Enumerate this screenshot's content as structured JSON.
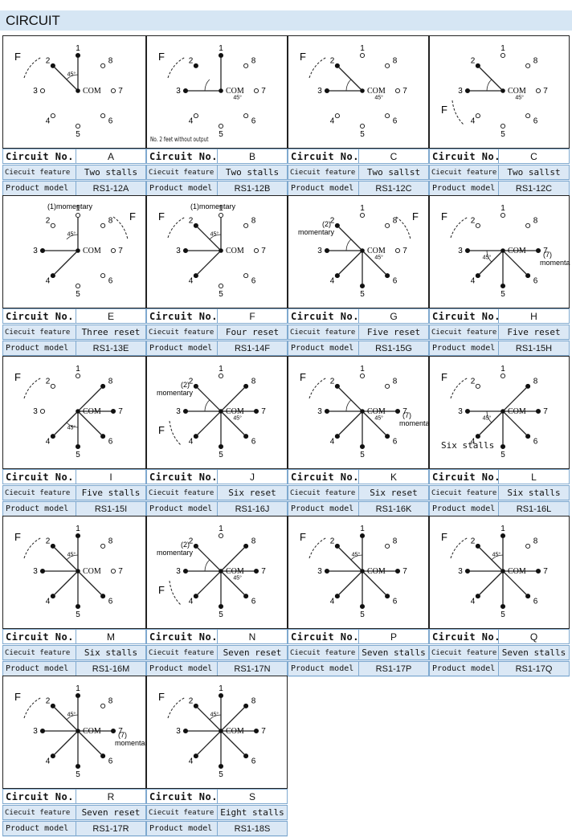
{
  "header": {
    "title": "CIRCUIT"
  },
  "labels": {
    "circuit_no": "Circuit No.",
    "feature": "Ciecuit feature",
    "model": "Product model"
  },
  "diagram_text": {
    "com": "COM",
    "f": "F",
    "angle": "45°",
    "momentary": "momentary",
    "momentary_1": "(1)momentary",
    "no2_note": "No. 2 feet without output"
  },
  "circuits": [
    {
      "no": "A",
      "feature": "Two stalls",
      "model": "RS1-12A"
    },
    {
      "no": "B",
      "feature": "Two stalls",
      "model": "RS1-12B"
    },
    {
      "no": "C",
      "feature": "Two sallst",
      "model": "RS1-12C"
    },
    {
      "no": "C",
      "feature": "Two sallst",
      "model": "RS1-12C"
    },
    {
      "no": "E",
      "feature": "Three reset",
      "model": "RS1-13E"
    },
    {
      "no": "F",
      "feature": "Four reset",
      "model": "RS1-14F"
    },
    {
      "no": "G",
      "feature": "Five reset",
      "model": "RS1-15G"
    },
    {
      "no": "H",
      "feature": "Five reset",
      "model": "RS1-15H"
    },
    {
      "no": "I",
      "feature": "Five stalls",
      "model": "RS1-15I"
    },
    {
      "no": "J",
      "feature": "Six reset",
      "model": "RS1-16J"
    },
    {
      "no": "K",
      "feature": "Six reset",
      "model": "RS1-16K"
    },
    {
      "no": "L",
      "feature": "Six stalls",
      "model": "RS1-16L"
    },
    {
      "no": "M",
      "feature": "Six stalls",
      "model": "RS1-16M"
    },
    {
      "no": "N",
      "feature": "Seven reset",
      "model": "RS1-17N"
    },
    {
      "no": "P",
      "feature": "Seven stalls",
      "model": "RS1-17P"
    },
    {
      "no": "Q",
      "feature": "Seven stalls",
      "model": "RS1-17Q"
    },
    {
      "no": "R",
      "feature": "Seven reset",
      "model": "RS1-17R"
    },
    {
      "no": "S",
      "feature": "Eight stalls",
      "model": "RS1-18S"
    }
  ],
  "diagrams": [
    {
      "filled": [
        1,
        2
      ],
      "lines": [
        1,
        2
      ],
      "angle": [
        1,
        2
      ],
      "f": "tl",
      "extra": ""
    },
    {
      "filled": [
        1,
        2,
        3
      ],
      "lines": [
        1,
        3
      ],
      "angle": [
        2,
        3
      ],
      "f": "tl",
      "extra": "no2"
    },
    {
      "filled": [
        2,
        3
      ],
      "lines": [
        2,
        3
      ],
      "angle": [
        2,
        3
      ],
      "f": "tl",
      "extra": ""
    },
    {
      "filled": [
        2,
        3
      ],
      "lines": [
        2,
        3
      ],
      "angle": [
        2,
        3
      ],
      "f": "bl",
      "extra": ""
    },
    {
      "filled": [
        3,
        4
      ],
      "lines": [
        1,
        3,
        4
      ],
      "angle": [
        1,
        2
      ],
      "f": "tr",
      "extra": "m1"
    },
    {
      "filled": [
        2,
        3,
        4
      ],
      "lines": [
        1,
        2,
        3,
        4
      ],
      "angle": [
        1,
        2
      ],
      "f": "tl",
      "extra": "m1"
    },
    {
      "filled": [
        2,
        3,
        4,
        5,
        6
      ],
      "lines": [
        2,
        3,
        4,
        5,
        6
      ],
      "angle": [
        2,
        3
      ],
      "f": "tr",
      "extra": "m2"
    },
    {
      "filled": [
        3,
        4,
        5,
        6,
        7
      ],
      "lines": [
        3,
        4,
        5,
        6,
        7
      ],
      "angle": [
        3,
        4
      ],
      "f": "tl",
      "extra": "m7"
    },
    {
      "filled": [
        4,
        5,
        6,
        7,
        8
      ],
      "lines": [
        4,
        5,
        6,
        7,
        8
      ],
      "angle": [
        4,
        5
      ],
      "f": "tl",
      "extra": ""
    },
    {
      "filled": [
        2,
        3,
        4,
        5,
        6,
        7,
        8
      ],
      "lines": [
        2,
        3,
        4,
        5,
        6,
        7,
        8
      ],
      "angle": [
        2,
        3
      ],
      "f": "bl",
      "extra": "m2"
    },
    {
      "filled": [
        2,
        3,
        4,
        5,
        6,
        7
      ],
      "lines": [
        2,
        3,
        4,
        5,
        6,
        7
      ],
      "angle": [
        2,
        3
      ],
      "f": "tl",
      "extra": "m7"
    },
    {
      "filled": [
        3,
        4,
        5,
        6,
        7,
        8
      ],
      "lines": [
        3,
        4,
        5,
        6,
        7,
        8
      ],
      "angle": [
        3,
        4
      ],
      "f": "tl",
      "extra": "six"
    },
    {
      "filled": [
        1,
        2,
        3,
        4,
        5,
        6
      ],
      "lines": [
        1,
        2,
        3,
        4,
        5,
        6
      ],
      "angle": [
        1,
        2
      ],
      "f": "tl",
      "extra": ""
    },
    {
      "filled": [
        2,
        3,
        4,
        5,
        6,
        7,
        8
      ],
      "lines": [
        2,
        3,
        4,
        5,
        6,
        7,
        8
      ],
      "angle": [
        2,
        3
      ],
      "f": "bl",
      "extra": "m2"
    },
    {
      "filled": [
        1,
        2,
        3,
        4,
        5,
        6,
        7
      ],
      "lines": [
        1,
        2,
        3,
        4,
        5,
        6,
        7
      ],
      "angle": [
        1,
        2
      ],
      "f": "tl",
      "extra": ""
    },
    {
      "filled": [
        1,
        2,
        3,
        4,
        5,
        6,
        7
      ],
      "lines": [
        1,
        2,
        3,
        4,
        5,
        6,
        7
      ],
      "angle": [
        1,
        2
      ],
      "f": "tl",
      "extra": ""
    },
    {
      "filled": [
        1,
        2,
        3,
        4,
        5,
        6,
        7
      ],
      "lines": [
        1,
        2,
        3,
        4,
        5,
        6,
        7
      ],
      "angle": [
        1,
        2
      ],
      "f": "tl",
      "extra": "m7"
    },
    {
      "filled": [
        1,
        2,
        3,
        4,
        5,
        6,
        7,
        8
      ],
      "lines": [
        1,
        2,
        3,
        4,
        5,
        6,
        7,
        8
      ],
      "angle": [
        1,
        2
      ],
      "f": "tl",
      "extra": ""
    }
  ]
}
